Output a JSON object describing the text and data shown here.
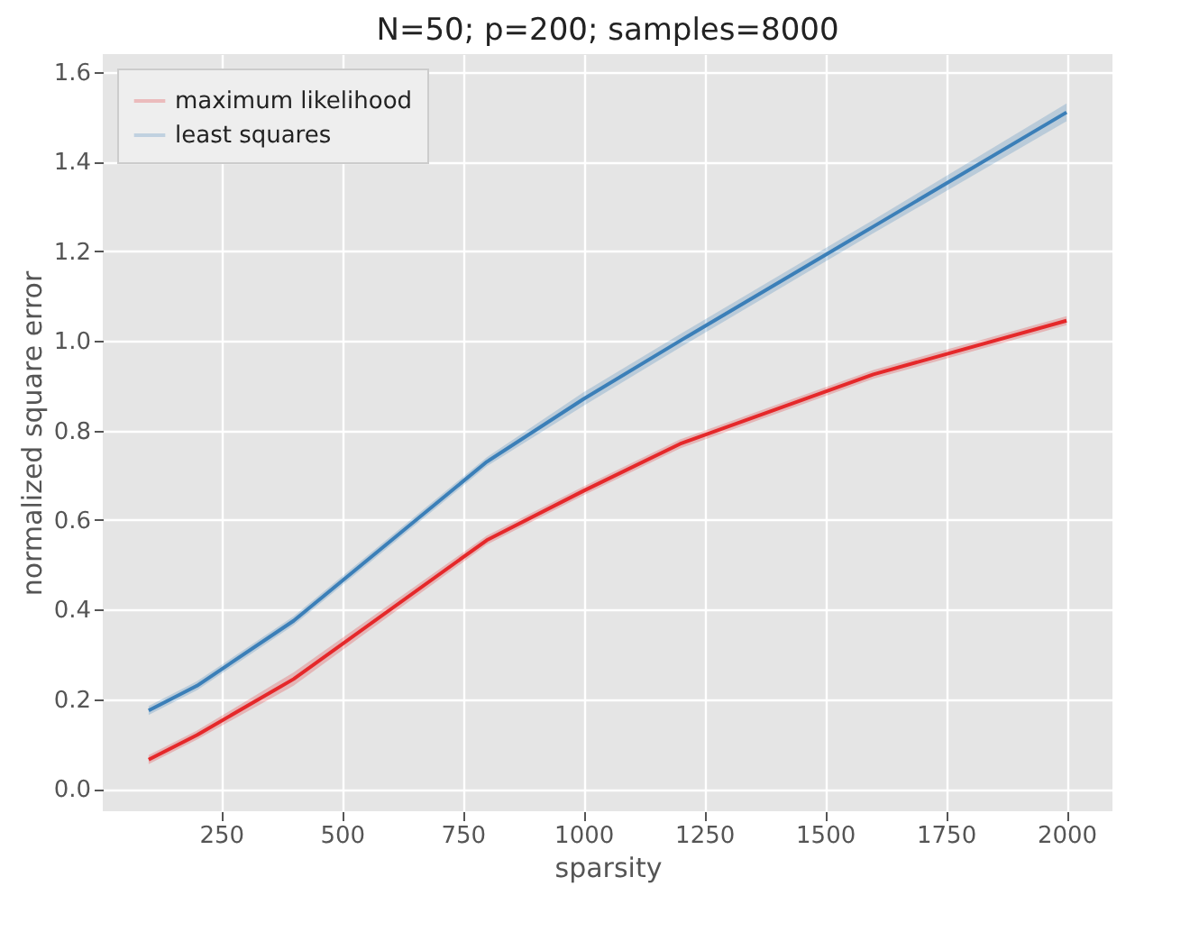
{
  "chart_data": {
    "type": "line",
    "title": "N=50; p=200; samples=8000",
    "xlabel": "sparsity",
    "ylabel": "normalized square error",
    "x": [
      100,
      200,
      400,
      800,
      1000,
      1200,
      1600,
      2000
    ],
    "series": [
      {
        "name": "maximum likelihood",
        "color": "#e5282a",
        "values": [
          0.065,
          0.12,
          0.245,
          0.555,
          0.665,
          0.77,
          0.925,
          1.045
        ],
        "lower": [
          0.055,
          0.11,
          0.23,
          0.545,
          0.655,
          0.76,
          0.915,
          1.035
        ],
        "upper": [
          0.075,
          0.13,
          0.26,
          0.565,
          0.675,
          0.78,
          0.935,
          1.055
        ]
      },
      {
        "name": "least squares",
        "color": "#3b7fb8",
        "values": [
          0.175,
          0.23,
          0.375,
          0.73,
          0.87,
          1.0,
          1.255,
          1.51
        ],
        "lower": [
          0.165,
          0.22,
          0.365,
          0.72,
          0.855,
          0.985,
          1.24,
          1.49
        ],
        "upper": [
          0.185,
          0.24,
          0.385,
          0.74,
          0.885,
          1.015,
          1.27,
          1.53
        ]
      }
    ],
    "xlim": [
      5,
      2095
    ],
    "xticks": [
      250,
      500,
      750,
      1000,
      1250,
      1500,
      1750,
      2000
    ],
    "ylim": [
      -0.05,
      1.64
    ],
    "yticks": [
      {
        "value": 0,
        "label": "0.0"
      },
      0.2,
      0.4,
      0.6,
      0.8,
      {
        "value": 1,
        "label": "1.0"
      },
      1.2,
      1.4,
      1.6
    ],
    "grid": true,
    "legend": "top left"
  }
}
